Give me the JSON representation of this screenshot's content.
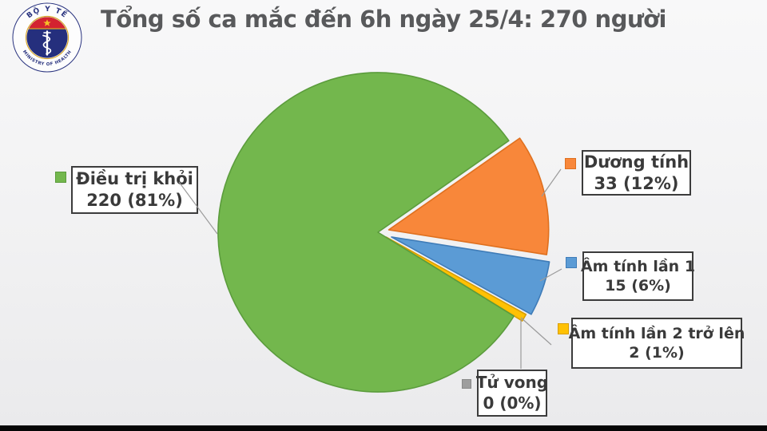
{
  "page": {
    "letterbox_color": "#060606"
  },
  "header": {
    "title": "Tổng số ca mắc đến 6h ngày 25/4: 270 người",
    "title_color": "#58595b"
  },
  "logo": {
    "top_text": "BỘ Y TẾ",
    "bottom_text": "MINISTRY OF HEALTH",
    "ring_color": "#29337f",
    "disc_color": "#252f7d",
    "cap_color": "#d32330",
    "star_color": "#f5c028",
    "gold_color": "#d8a62a"
  },
  "chart_data": {
    "type": "pie",
    "title": "Tổng số ca mắc đến 6h ngày 25/4: 270 người",
    "total": 270,
    "unit": "người",
    "legend_position": "callouts",
    "start_angle_deg": 35,
    "clockwise": true,
    "center": [
      473,
      291
    ],
    "radius": 200,
    "slices": [
      {
        "id": "duong-tinh",
        "label": "Dương tính",
        "value": 33,
        "percent": 12,
        "display": "33 (12%)",
        "color": "#f8873a",
        "border": "#df701f",
        "explode": 14
      },
      {
        "id": "am-tinh-lan-1",
        "label": "Âm tính lần 1",
        "value": 15,
        "percent": 6,
        "display": "15 (6%)",
        "color": "#5b9bd5",
        "border": "#3f7cb8",
        "explode": 18
      },
      {
        "id": "am-tinh-lan-2",
        "label": "Âm tính lần 2 trở lên",
        "value": 2,
        "percent": 1,
        "display": "2 (1%)",
        "color": "#ffc103",
        "border": "#d99e00",
        "explode": 12
      },
      {
        "id": "tu-vong",
        "label": "Tử vong",
        "value": 0,
        "percent": 0,
        "display": "0 (0%)",
        "color": "#9e9e9e",
        "border": "#8a8a8a",
        "explode": 0
      },
      {
        "id": "dieu-tri-khoi",
        "label": "Điều trị khỏi",
        "value": 220,
        "percent": 81,
        "display": "220 (81%)",
        "color": "#73b74d",
        "border": "#5b9c3c",
        "explode": 0
      }
    ]
  }
}
